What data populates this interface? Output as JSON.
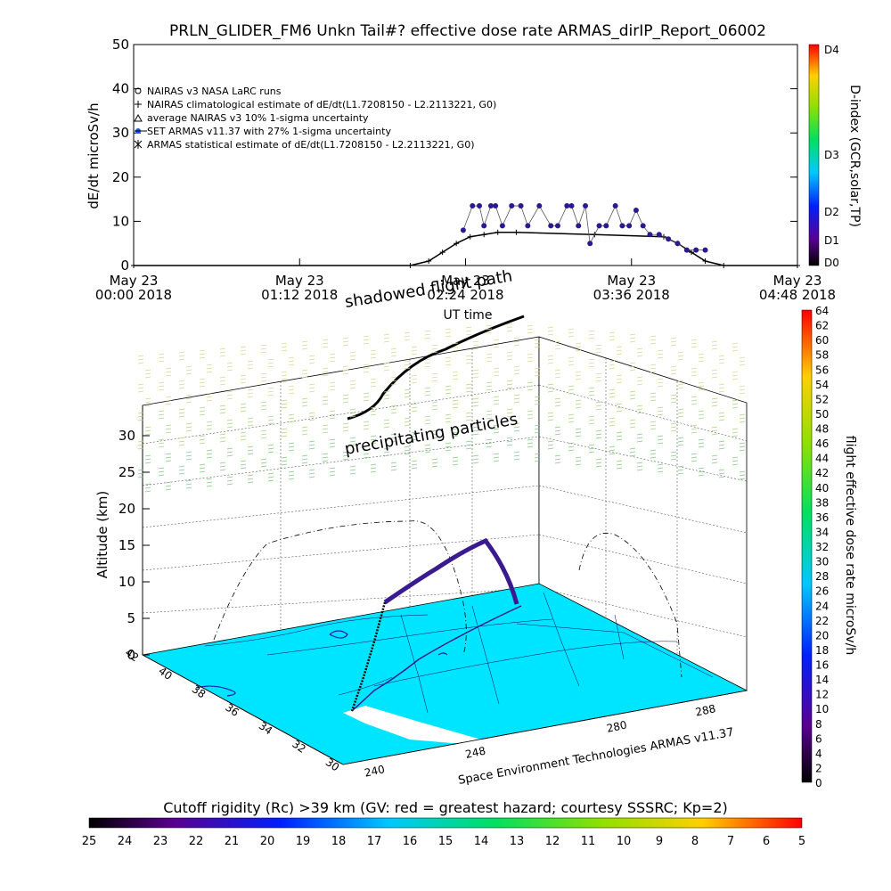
{
  "top_chart": {
    "title": "PRLN_GLIDER_FM6 Unkn Tail#? effective dose rate ARMAS_dirIP_Report_06002",
    "ylabel": "dE/dt microSv/h",
    "xlabel": "UT time",
    "right_label": "D-index (GCR,solar,TP)",
    "legend": [
      "NAIRAS v3 NASA LaRC runs",
      "NAIRAS climatological estimate of dE/dt(L1.7208150 - L2.2113221, G0)",
      "average NAIRAS v3 10% 1-sigma uncertainty",
      "SET ARMAS v11.37 with 27% 1-sigma uncertainty",
      "ARMAS statistical estimate of dE/dt(L1.7208150 - L2.2113221, G0)"
    ]
  },
  "chart_data": [
    {
      "type": "line",
      "title": "PRLN_GLIDER_FM6 Unkn Tail#? effective dose rate ARMAS_dirIP_Report_06002",
      "xlabel": "UT time",
      "ylabel": "dE/dt microSv/h",
      "ylim": [
        0,
        50
      ],
      "yticks": [
        0,
        10,
        20,
        30,
        40,
        50
      ],
      "xticks": [
        {
          "date": "May 23",
          "time": "00:00 2018"
        },
        {
          "date": "May 23",
          "time": "01:12 2018"
        },
        {
          "date": "May 23",
          "time": "02:24 2018"
        },
        {
          "date": "May 23",
          "time": "03:36 2018"
        },
        {
          "date": "May 23",
          "time": "04:48 2018"
        }
      ],
      "xlim_minutes": [
        0,
        288
      ],
      "series": [
        {
          "name": "NAIRAS climatological estimate of dE/dt(L1.7208150 - L2.2113221, G0)",
          "color": "#000000",
          "x_minutes": [
            0,
            120,
            128,
            134,
            140,
            146,
            152,
            158,
            166,
            200,
            230,
            236,
            242,
            248,
            256,
            288
          ],
          "values": [
            0,
            0,
            1,
            3,
            5,
            6.5,
            7,
            7.5,
            7.5,
            7,
            6.5,
            5,
            3,
            1,
            0,
            0
          ]
        },
        {
          "name": "SET ARMAS v11.37 with 27% 1-sigma uncertainty",
          "color": "#2b1a8f",
          "x_minutes": [
            143,
            147,
            150,
            152,
            155,
            157,
            160,
            164,
            168,
            171,
            176,
            181,
            184,
            188,
            190,
            193,
            196,
            198,
            202,
            205,
            209,
            212,
            215,
            218,
            221,
            224,
            228,
            232,
            236,
            240,
            244,
            248
          ],
          "values": [
            8,
            13.5,
            13.5,
            9,
            13.5,
            13.5,
            9,
            13.5,
            13.5,
            9,
            13.5,
            9,
            9,
            13.5,
            13.5,
            9,
            13.5,
            5,
            9,
            9,
            13.5,
            9,
            9,
            12.5,
            9,
            7,
            7,
            6,
            5,
            3.5,
            3.5,
            3.5
          ]
        }
      ]
    },
    {
      "type": "scatter",
      "title": "shadowed flight path",
      "annotation": "precipitating particles",
      "zlabel": "Altitude (km)",
      "zticks": [
        0,
        5,
        10,
        15,
        20,
        25,
        30
      ],
      "lat_ticks": [
        30,
        32,
        34,
        36,
        38,
        40,
        42
      ],
      "lon_ticks": [
        240,
        248,
        280,
        288
      ],
      "colorbar": {
        "label": "flight effective dose rate microSv/h",
        "ticks": [
          0,
          2,
          4,
          6,
          8,
          10,
          12,
          14,
          16,
          18,
          20,
          22,
          24,
          26,
          28,
          30,
          32,
          34,
          36,
          38,
          40,
          42,
          44,
          46,
          48,
          50,
          52,
          54,
          56,
          58,
          60,
          62,
          64
        ]
      },
      "footer": "Space Environment Technologies ARMAS v11.37",
      "flight_track": {
        "lat": [
          33.2,
          34.0,
          35.0,
          36.0,
          37.0,
          37.5,
          38.0,
          38.5,
          39.0,
          39.5,
          40.0
        ],
        "lon": [
          242,
          246,
          252,
          258,
          264,
          268,
          272,
          276,
          280,
          284,
          288
        ],
        "alt_km": [
          0,
          2,
          5,
          8,
          10.5,
          11.5,
          12.5,
          13,
          13.5,
          14,
          15
        ]
      }
    }
  ],
  "bottom_bar": {
    "label": "Cutoff rigidity (Rc) >39 km (GV: red = greatest hazard; courtesy SSSRC; Kp=2)",
    "ticks": [
      "25",
      "24",
      "23",
      "22",
      "21",
      "20",
      "19",
      "18",
      "17",
      "16",
      "15",
      "14",
      "13",
      "12",
      "11",
      "10",
      "9",
      "8",
      "7",
      "6",
      "5"
    ]
  },
  "dindex_ticks": [
    "D4",
    "D3",
    "D2",
    "D1",
    "D0"
  ],
  "colors": {
    "ground": "#00e5ff",
    "armas": "#2b1a8f",
    "nairas": "#000000"
  }
}
